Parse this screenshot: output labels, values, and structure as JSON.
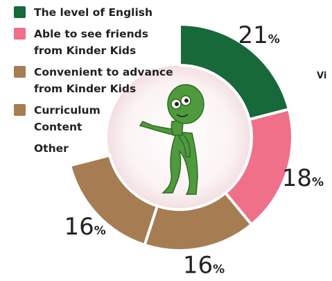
{
  "chart_data": {
    "type": "donut",
    "categories": [
      "The level of English",
      "Able to see friends\nfrom Kinder Kids",
      "Convenient to advance\nfrom Kinder Kids",
      "Curriculum\nContent",
      "Other"
    ],
    "values": [
      21,
      18,
      16,
      16,
      null
    ],
    "unit": "%",
    "colors": [
      "#17693a",
      "#f07089",
      "#a67c52",
      "#a67c52",
      null
    ],
    "side_text": "Vi"
  }
}
